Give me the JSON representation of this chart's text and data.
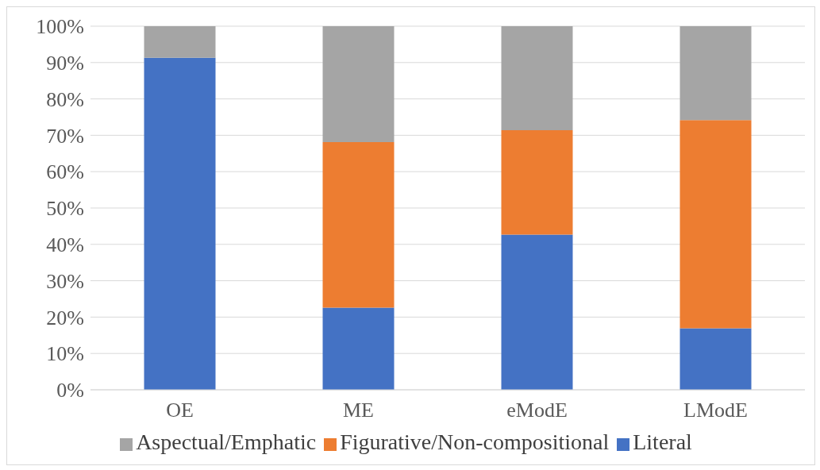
{
  "chart_data": {
    "type": "bar",
    "stacked": true,
    "categories": [
      "OE",
      "ME",
      "eModE",
      "LModE"
    ],
    "series": [
      {
        "name": "Literal",
        "color": "#4472c4",
        "values": [
          91.3,
          22.6,
          42.7,
          16.9
        ]
      },
      {
        "name": "Figurative/Non-compositional",
        "color": "#ed7d31",
        "values": [
          0,
          45.5,
          28.7,
          57.3
        ]
      },
      {
        "name": "Aspectual/Emphatic",
        "color": "#a5a5a5",
        "values": [
          8.7,
          31.9,
          28.6,
          25.8
        ]
      }
    ],
    "ylim": [
      0,
      100
    ],
    "yticks": [
      {
        "value": 0,
        "label": "0%"
      },
      {
        "value": 10,
        "label": "10%"
      },
      {
        "value": 20,
        "label": "20%"
      },
      {
        "value": 30,
        "label": "30%"
      },
      {
        "value": 40,
        "label": "40%"
      },
      {
        "value": 50,
        "label": "50%"
      },
      {
        "value": 60,
        "label": "60%"
      },
      {
        "value": 70,
        "label": "70%"
      },
      {
        "value": 80,
        "label": "80%"
      },
      {
        "value": 90,
        "label": "90%"
      },
      {
        "value": 100,
        "label": "100%"
      }
    ],
    "grid": "y",
    "legend": "bottom"
  }
}
